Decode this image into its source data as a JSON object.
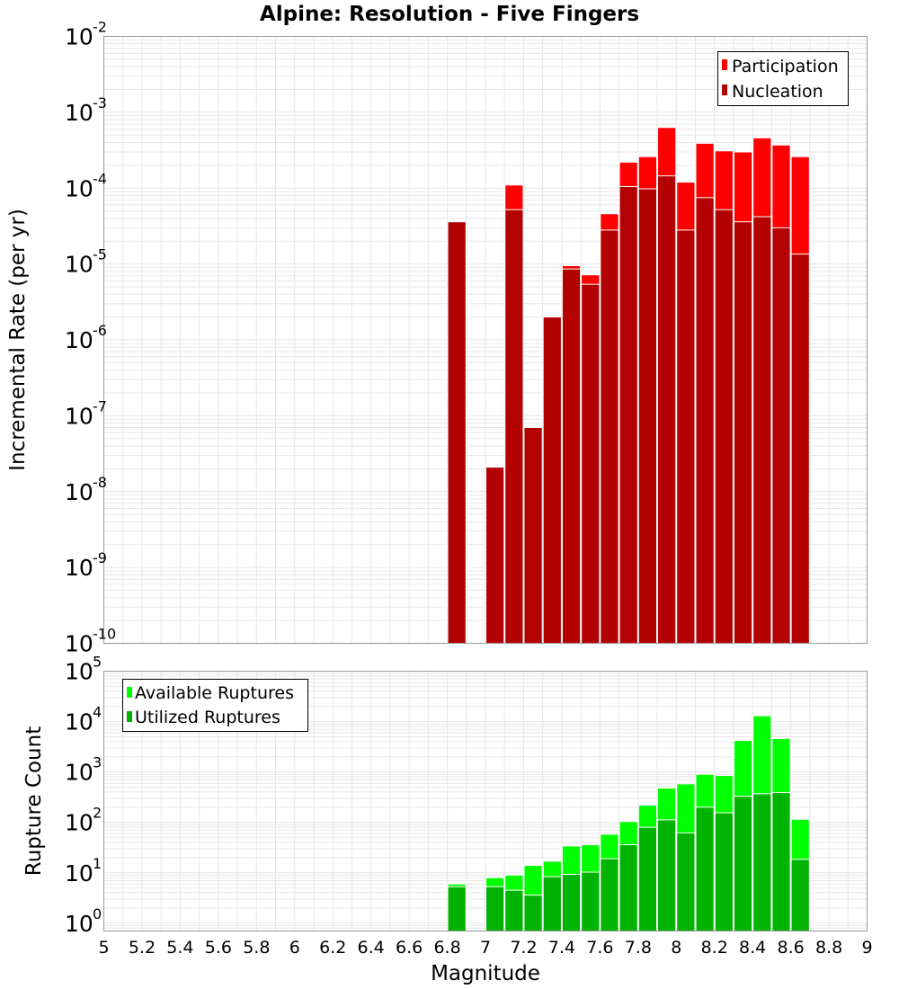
{
  "title": "Alpine: Resolution - Five Fingers",
  "chart_data": [
    {
      "type": "bar",
      "ylabel": "Incremental Rate (per yr)",
      "yscale": "log",
      "ylim": [
        1e-10,
        0.01
      ],
      "ytick_base": "10",
      "ytick_exponents": [
        "-10",
        "-9",
        "-8",
        "-7",
        "-6",
        "-5",
        "-4",
        "-3",
        "-2"
      ],
      "xlim": [
        5,
        9
      ],
      "grid": true,
      "legend": "top-right",
      "series": [
        {
          "name": "Participation",
          "color": "#ff0000",
          "x": [
            6.85,
            7.15,
            7.45,
            7.55,
            7.65,
            7.75,
            7.85,
            7.95,
            8.05,
            8.15,
            8.25,
            8.35,
            8.45,
            8.55,
            8.65
          ],
          "values": [
            3.6e-05,
            0.00011,
            9.5e-06,
            7.2e-06,
            4.6e-05,
            0.00022,
            0.00026,
            0.00063,
            0.00012,
            0.00039,
            0.00031,
            0.0003,
            0.00046,
            0.00037,
            0.00026
          ]
        },
        {
          "name": "Nucleation",
          "color": "#b30000",
          "x": [
            6.85,
            7.05,
            7.15,
            7.25,
            7.35,
            7.45,
            7.55,
            7.65,
            7.75,
            7.85,
            7.95,
            8.05,
            8.15,
            8.25,
            8.35,
            8.45,
            8.55,
            8.65
          ],
          "values": [
            3.6e-05,
            2.1e-08,
            5.2e-05,
            7e-08,
            2e-06,
            8.6e-06,
            5.4e-06,
            2.8e-05,
            0.000105,
            9.8e-05,
            0.000145,
            2.8e-05,
            7.5e-05,
            5.2e-05,
            3.6e-05,
            4.2e-05,
            3e-05,
            1.35e-05
          ]
        }
      ]
    },
    {
      "type": "bar",
      "ylabel": "Rupture Count",
      "xlabel": "Magnitude",
      "yscale": "log",
      "ylim": [
        0.7,
        100000.0
      ],
      "ytick_base": "10",
      "ytick_exponents": [
        "0",
        "1",
        "2",
        "3",
        "4",
        "5"
      ],
      "xlim": [
        5,
        9
      ],
      "xticks": [
        "5",
        "5.2",
        "5.4",
        "5.6",
        "5.8",
        "6",
        "6.2",
        "6.4",
        "6.6",
        "6.8",
        "7",
        "7.2",
        "7.4",
        "7.6",
        "7.8",
        "8",
        "8.2",
        "8.4",
        "8.6",
        "8.8",
        "9"
      ],
      "grid": true,
      "legend": "top-left",
      "series": [
        {
          "name": "Available Ruptures",
          "color": "#00ff00",
          "x": [
            6.85,
            7.05,
            7.15,
            7.25,
            7.35,
            7.45,
            7.55,
            7.65,
            7.75,
            7.85,
            7.95,
            8.05,
            8.15,
            8.25,
            8.35,
            8.45,
            8.55,
            8.65
          ],
          "values": [
            6,
            8,
            9,
            14,
            17,
            34,
            36,
            58,
            104,
            220,
            480,
            580,
            900,
            850,
            4200,
            13000,
            4600,
            115
          ]
        },
        {
          "name": "Utilized Ruptures",
          "color": "#00b300",
          "x": [
            6.85,
            7.05,
            7.15,
            7.25,
            7.35,
            7.45,
            7.55,
            7.65,
            7.75,
            7.85,
            7.95,
            8.05,
            8.15,
            8.25,
            8.35,
            8.45,
            8.55,
            8.65
          ],
          "values": [
            5.3,
            5.3,
            4.5,
            3.6,
            8.4,
            9.3,
            10.3,
            19,
            36,
            80,
            112,
            62,
            200,
            155,
            330,
            370,
            390,
            18.5
          ]
        }
      ]
    }
  ]
}
